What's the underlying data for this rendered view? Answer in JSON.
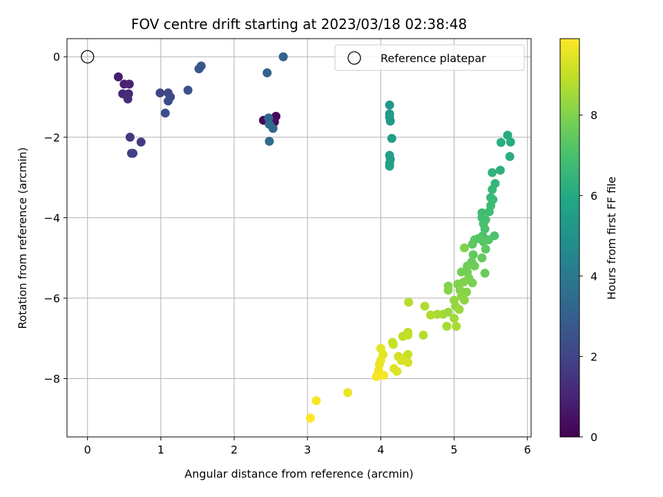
{
  "chart_data": {
    "type": "scatter",
    "title": "FOV centre drift starting at 2023/03/18 02:38:48",
    "xlabel": "Angular distance from reference (arcmin)",
    "ylabel": "Rotation from reference (arcmin)",
    "xlim": [
      -0.28,
      6.05
    ],
    "ylim": [
      -9.45,
      0.45
    ],
    "xticks": [
      0,
      1,
      2,
      3,
      4,
      5,
      6
    ],
    "yticks": [
      0,
      -2,
      -4,
      -6,
      -8
    ],
    "xtick_labels": [
      "0",
      "1",
      "2",
      "3",
      "4",
      "5",
      "6"
    ],
    "ytick_labels": [
      "0",
      "−2",
      "−4",
      "−6",
      "−8"
    ],
    "grid": true,
    "colormap": "viridis",
    "colorbar": {
      "label": "Hours from first FF file",
      "range": [
        0,
        9.9
      ],
      "ticks": [
        0,
        2,
        4,
        6,
        8
      ],
      "tick_labels": [
        "0",
        "2",
        "4",
        "6",
        "8"
      ]
    },
    "legend": {
      "position": "top-right",
      "entries": [
        "Reference platepar"
      ]
    },
    "reference_point": {
      "x": 0,
      "y": 0
    },
    "points": [
      {
        "x": 2.4,
        "y": -1.58,
        "h": 0.1
      },
      {
        "x": 2.57,
        "y": -1.48,
        "h": 0.2
      },
      {
        "x": 2.55,
        "y": -1.62,
        "h": 0.3
      },
      {
        "x": 2.45,
        "y": -1.56,
        "h": 0.4
      },
      {
        "x": 2.5,
        "y": -1.6,
        "h": 0.5
      },
      {
        "x": 0.42,
        "y": -0.5,
        "h": 0.8
      },
      {
        "x": 0.5,
        "y": -0.68,
        "h": 0.9
      },
      {
        "x": 0.57,
        "y": -0.68,
        "h": 1.0
      },
      {
        "x": 0.48,
        "y": -0.92,
        "h": 1.1
      },
      {
        "x": 0.56,
        "y": -0.92,
        "h": 1.2
      },
      {
        "x": 0.55,
        "y": -1.05,
        "h": 1.3
      },
      {
        "x": 0.58,
        "y": -2.0,
        "h": 1.6
      },
      {
        "x": 0.73,
        "y": -2.12,
        "h": 1.7
      },
      {
        "x": 0.6,
        "y": -2.4,
        "h": 1.8
      },
      {
        "x": 0.62,
        "y": -2.4,
        "h": 1.9
      },
      {
        "x": 0.99,
        "y": -0.9,
        "h": 2.0
      },
      {
        "x": 1.1,
        "y": -0.9,
        "h": 2.1
      },
      {
        "x": 1.13,
        "y": -1.0,
        "h": 2.2
      },
      {
        "x": 1.1,
        "y": -1.1,
        "h": 2.3
      },
      {
        "x": 1.06,
        "y": -1.4,
        "h": 2.4
      },
      {
        "x": 1.37,
        "y": -0.83,
        "h": 2.5
      },
      {
        "x": 1.52,
        "y": -0.3,
        "h": 2.6
      },
      {
        "x": 1.55,
        "y": -0.23,
        "h": 2.7
      },
      {
        "x": 2.45,
        "y": -0.4,
        "h": 3.0
      },
      {
        "x": 2.67,
        "y": 0.0,
        "h": 3.1
      },
      {
        "x": 2.47,
        "y": -1.52,
        "h": 3.2
      },
      {
        "x": 2.53,
        "y": -1.78,
        "h": 3.3
      },
      {
        "x": 2.48,
        "y": -1.68,
        "h": 3.4
      },
      {
        "x": 2.48,
        "y": -2.1,
        "h": 3.5
      },
      {
        "x": 4.12,
        "y": -1.2,
        "h": 5.2
      },
      {
        "x": 4.12,
        "y": -1.42,
        "h": 5.3
      },
      {
        "x": 4.12,
        "y": -1.5,
        "h": 5.35
      },
      {
        "x": 4.13,
        "y": -1.6,
        "h": 5.4
      },
      {
        "x": 4.15,
        "y": -2.03,
        "h": 5.45
      },
      {
        "x": 4.12,
        "y": -2.45,
        "h": 5.5
      },
      {
        "x": 4.13,
        "y": -2.55,
        "h": 5.55
      },
      {
        "x": 4.12,
        "y": -2.65,
        "h": 5.6
      },
      {
        "x": 4.12,
        "y": -2.72,
        "h": 5.65
      },
      {
        "x": 5.73,
        "y": -1.95,
        "h": 6.1
      },
      {
        "x": 5.77,
        "y": -2.12,
        "h": 6.1
      },
      {
        "x": 5.64,
        "y": -2.13,
        "h": 6.2
      },
      {
        "x": 5.76,
        "y": -2.48,
        "h": 6.2
      },
      {
        "x": 5.63,
        "y": -2.82,
        "h": 6.3
      },
      {
        "x": 5.52,
        "y": -2.88,
        "h": 6.4
      },
      {
        "x": 5.56,
        "y": -3.15,
        "h": 6.5
      },
      {
        "x": 5.52,
        "y": -3.3,
        "h": 6.6
      },
      {
        "x": 5.5,
        "y": -3.5,
        "h": 6.6
      },
      {
        "x": 5.53,
        "y": -3.55,
        "h": 6.7
      },
      {
        "x": 5.5,
        "y": -3.7,
        "h": 6.7
      },
      {
        "x": 5.48,
        "y": -3.85,
        "h": 6.8
      },
      {
        "x": 5.38,
        "y": -3.88,
        "h": 6.8
      },
      {
        "x": 5.38,
        "y": -4.0,
        "h": 6.9
      },
      {
        "x": 5.43,
        "y": -4.05,
        "h": 6.9
      },
      {
        "x": 5.4,
        "y": -4.15,
        "h": 7.0
      },
      {
        "x": 5.42,
        "y": -4.28,
        "h": 7.0
      },
      {
        "x": 5.39,
        "y": -4.45,
        "h": 7.1
      },
      {
        "x": 5.55,
        "y": -4.45,
        "h": 7.1
      },
      {
        "x": 5.47,
        "y": -4.55,
        "h": 7.2
      },
      {
        "x": 5.33,
        "y": -4.52,
        "h": 7.2
      },
      {
        "x": 5.28,
        "y": -4.55,
        "h": 7.3
      },
      {
        "x": 5.4,
        "y": -4.6,
        "h": 7.3
      },
      {
        "x": 5.43,
        "y": -4.78,
        "h": 7.4
      },
      {
        "x": 5.25,
        "y": -4.66,
        "h": 7.4
      },
      {
        "x": 5.38,
        "y": -5.0,
        "h": 7.5
      },
      {
        "x": 5.26,
        "y": -4.92,
        "h": 7.5
      },
      {
        "x": 5.42,
        "y": -5.38,
        "h": 7.6
      },
      {
        "x": 5.24,
        "y": -5.1,
        "h": 7.6
      },
      {
        "x": 5.18,
        "y": -5.2,
        "h": 7.7
      },
      {
        "x": 5.28,
        "y": -5.2,
        "h": 7.7
      },
      {
        "x": 5.18,
        "y": -5.35,
        "h": 7.8
      },
      {
        "x": 5.1,
        "y": -5.35,
        "h": 7.8
      },
      {
        "x": 5.2,
        "y": -5.5,
        "h": 7.9
      },
      {
        "x": 5.25,
        "y": -5.62,
        "h": 7.9
      },
      {
        "x": 5.13,
        "y": -5.6,
        "h": 8.0
      },
      {
        "x": 5.05,
        "y": -5.65,
        "h": 8.0
      },
      {
        "x": 5.17,
        "y": -5.85,
        "h": 8.1
      },
      {
        "x": 5.08,
        "y": -5.8,
        "h": 8.1
      },
      {
        "x": 5.1,
        "y": -5.95,
        "h": 8.2
      },
      {
        "x": 5.14,
        "y": -6.05,
        "h": 8.2
      },
      {
        "x": 5.0,
        "y": -6.05,
        "h": 8.3
      },
      {
        "x": 5.02,
        "y": -6.2,
        "h": 8.3
      },
      {
        "x": 5.07,
        "y": -6.28,
        "h": 8.4
      },
      {
        "x": 4.92,
        "y": -6.35,
        "h": 8.4
      },
      {
        "x": 4.85,
        "y": -6.4,
        "h": 8.5
      },
      {
        "x": 5.0,
        "y": -6.5,
        "h": 8.5
      },
      {
        "x": 4.77,
        "y": -6.4,
        "h": 8.6
      },
      {
        "x": 4.9,
        "y": -6.7,
        "h": 8.6
      },
      {
        "x": 5.03,
        "y": -6.7,
        "h": 8.6
      },
      {
        "x": 4.92,
        "y": -5.7,
        "h": 8.0
      },
      {
        "x": 4.92,
        "y": -5.8,
        "h": 8.1
      },
      {
        "x": 5.14,
        "y": -4.75,
        "h": 8.0
      },
      {
        "x": 4.38,
        "y": -6.1,
        "h": 8.8
      },
      {
        "x": 4.6,
        "y": -6.2,
        "h": 8.7
      },
      {
        "x": 4.68,
        "y": -6.42,
        "h": 8.7
      },
      {
        "x": 4.58,
        "y": -6.92,
        "h": 8.8
      },
      {
        "x": 4.37,
        "y": -6.85,
        "h": 8.9
      },
      {
        "x": 4.3,
        "y": -6.95,
        "h": 8.9
      },
      {
        "x": 4.37,
        "y": -6.92,
        "h": 9.0
      },
      {
        "x": 4.16,
        "y": -7.1,
        "h": 9.0
      },
      {
        "x": 4.17,
        "y": -7.15,
        "h": 9.1
      },
      {
        "x": 4.37,
        "y": -7.4,
        "h": 9.1
      },
      {
        "x": 4.24,
        "y": -7.45,
        "h": 9.2
      },
      {
        "x": 4.3,
        "y": -7.5,
        "h": 9.2
      },
      {
        "x": 4.37,
        "y": -7.6,
        "h": 9.3
      },
      {
        "x": 4.28,
        "y": -7.55,
        "h": 9.3
      },
      {
        "x": 4.18,
        "y": -7.75,
        "h": 9.4
      },
      {
        "x": 4.22,
        "y": -7.82,
        "h": 9.4
      },
      {
        "x": 4.0,
        "y": -7.25,
        "h": 9.5
      },
      {
        "x": 4.03,
        "y": -7.4,
        "h": 9.5
      },
      {
        "x": 4.0,
        "y": -7.55,
        "h": 9.6
      },
      {
        "x": 3.98,
        "y": -7.65,
        "h": 9.6
      },
      {
        "x": 3.97,
        "y": -7.8,
        "h": 9.7
      },
      {
        "x": 3.96,
        "y": -7.9,
        "h": 9.7
      },
      {
        "x": 3.94,
        "y": -7.95,
        "h": 9.8
      },
      {
        "x": 4.04,
        "y": -7.92,
        "h": 9.8
      },
      {
        "x": 3.55,
        "y": -8.35,
        "h": 9.6
      },
      {
        "x": 3.12,
        "y": -8.55,
        "h": 9.8
      },
      {
        "x": 3.04,
        "y": -8.98,
        "h": 9.9
      }
    ]
  }
}
